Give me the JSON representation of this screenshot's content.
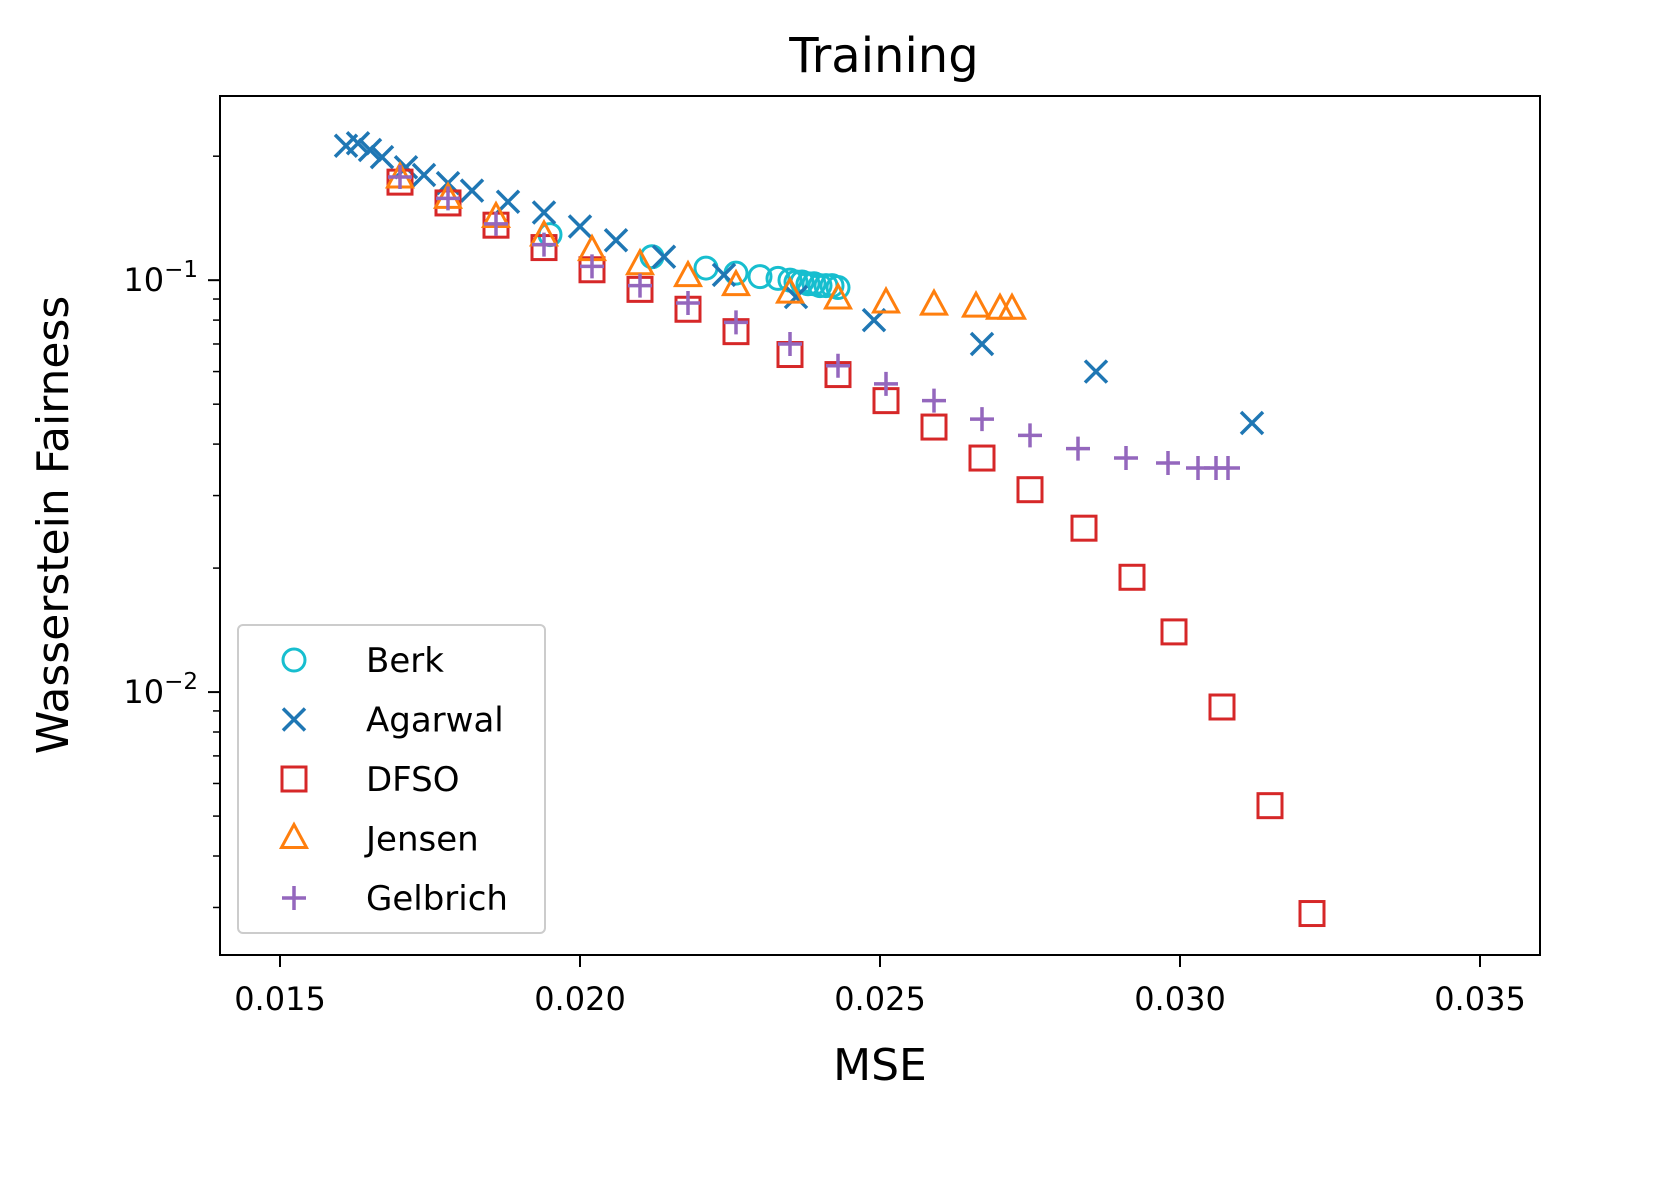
{
  "chart_data": {
    "type": "scatter",
    "title": "Training",
    "xlabel": "MSE",
    "ylabel": "Wasserstein Fairness",
    "xscale": "linear",
    "yscale": "log",
    "xlim": [
      0.014,
      0.036
    ],
    "ylim": [
      0.0023,
      0.28
    ],
    "grid": false,
    "legend_position": "lower-left",
    "x_ticks": [
      {
        "value": 0.015,
        "label": "0.015"
      },
      {
        "value": 0.02,
        "label": "0.020"
      },
      {
        "value": 0.025,
        "label": "0.025"
      },
      {
        "value": 0.03,
        "label": "0.030"
      },
      {
        "value": 0.035,
        "label": "0.035"
      }
    ],
    "y_major_ticks": [
      {
        "value": 0.1,
        "base": "10",
        "exp": "−1"
      },
      {
        "value": 0.01,
        "base": "10",
        "exp": "−2"
      }
    ],
    "y_minor_ticks": [
      0.003,
      0.004,
      0.005,
      0.006,
      0.007,
      0.008,
      0.009,
      0.02,
      0.03,
      0.04,
      0.05,
      0.06,
      0.07,
      0.08,
      0.09,
      0.2
    ],
    "series": [
      {
        "name": "Berk",
        "marker": "circle",
        "color": "#17becf",
        "points": [
          [
            0.0195,
            0.129
          ],
          [
            0.0212,
            0.114
          ],
          [
            0.0221,
            0.107
          ],
          [
            0.0226,
            0.104
          ],
          [
            0.023,
            0.102
          ],
          [
            0.0233,
            0.101
          ],
          [
            0.0235,
            0.1
          ],
          [
            0.0236,
            0.099
          ],
          [
            0.0237,
            0.099
          ],
          [
            0.0238,
            0.098
          ],
          [
            0.0239,
            0.098
          ],
          [
            0.024,
            0.097
          ],
          [
            0.0241,
            0.097
          ],
          [
            0.0242,
            0.097
          ],
          [
            0.0243,
            0.096
          ]
        ]
      },
      {
        "name": "Agarwal",
        "marker": "x",
        "color": "#1f77b4",
        "points": [
          [
            0.0161,
            0.212
          ],
          [
            0.0163,
            0.215
          ],
          [
            0.0165,
            0.207
          ],
          [
            0.0167,
            0.199
          ],
          [
            0.0171,
            0.188
          ],
          [
            0.0174,
            0.18
          ],
          [
            0.0178,
            0.172
          ],
          [
            0.0182,
            0.165
          ],
          [
            0.0188,
            0.155
          ],
          [
            0.0194,
            0.146
          ],
          [
            0.02,
            0.135
          ],
          [
            0.0206,
            0.125
          ],
          [
            0.0214,
            0.114
          ],
          [
            0.0224,
            0.103
          ],
          [
            0.0236,
            0.091
          ],
          [
            0.0249,
            0.08
          ],
          [
            0.0267,
            0.07
          ],
          [
            0.0286,
            0.06
          ],
          [
            0.0312,
            0.045
          ]
        ]
      },
      {
        "name": "DFSO",
        "marker": "square",
        "color": "#d62728",
        "points": [
          [
            0.017,
            0.173
          ],
          [
            0.0178,
            0.154
          ],
          [
            0.0186,
            0.136
          ],
          [
            0.0194,
            0.12
          ],
          [
            0.0202,
            0.106
          ],
          [
            0.021,
            0.095
          ],
          [
            0.0218,
            0.085
          ],
          [
            0.0226,
            0.075
          ],
          [
            0.0235,
            0.066
          ],
          [
            0.0243,
            0.059
          ],
          [
            0.0251,
            0.051
          ],
          [
            0.0259,
            0.044
          ],
          [
            0.0267,
            0.037
          ],
          [
            0.0275,
            0.031
          ],
          [
            0.0284,
            0.025
          ],
          [
            0.0292,
            0.019
          ],
          [
            0.0299,
            0.014
          ],
          [
            0.0307,
            0.0092
          ],
          [
            0.0315,
            0.0053
          ],
          [
            0.0322,
            0.0029
          ]
        ]
      },
      {
        "name": "Jensen",
        "marker": "triangle",
        "color": "#ff7f0e",
        "points": [
          [
            0.017,
            0.177
          ],
          [
            0.0178,
            0.158
          ],
          [
            0.0186,
            0.142
          ],
          [
            0.0194,
            0.128
          ],
          [
            0.0202,
            0.118
          ],
          [
            0.021,
            0.109
          ],
          [
            0.0218,
            0.102
          ],
          [
            0.0226,
            0.097
          ],
          [
            0.0235,
            0.093
          ],
          [
            0.0243,
            0.09
          ],
          [
            0.0251,
            0.088
          ],
          [
            0.0259,
            0.087
          ],
          [
            0.0266,
            0.086
          ],
          [
            0.027,
            0.085
          ],
          [
            0.0272,
            0.085
          ]
        ]
      },
      {
        "name": "Gelbrich",
        "marker": "plus",
        "color": "#9467bd",
        "points": [
          [
            0.017,
            0.178
          ],
          [
            0.0178,
            0.158
          ],
          [
            0.0186,
            0.137
          ],
          [
            0.0194,
            0.122
          ],
          [
            0.0202,
            0.108
          ],
          [
            0.021,
            0.097
          ],
          [
            0.0218,
            0.088
          ],
          [
            0.0226,
            0.079
          ],
          [
            0.0235,
            0.07
          ],
          [
            0.0243,
            0.062
          ],
          [
            0.0251,
            0.056
          ],
          [
            0.0259,
            0.051
          ],
          [
            0.0267,
            0.046
          ],
          [
            0.0275,
            0.042
          ],
          [
            0.0283,
            0.039
          ],
          [
            0.0291,
            0.037
          ],
          [
            0.0298,
            0.036
          ],
          [
            0.0303,
            0.035
          ],
          [
            0.0306,
            0.035
          ],
          [
            0.0308,
            0.035
          ]
        ]
      }
    ]
  }
}
